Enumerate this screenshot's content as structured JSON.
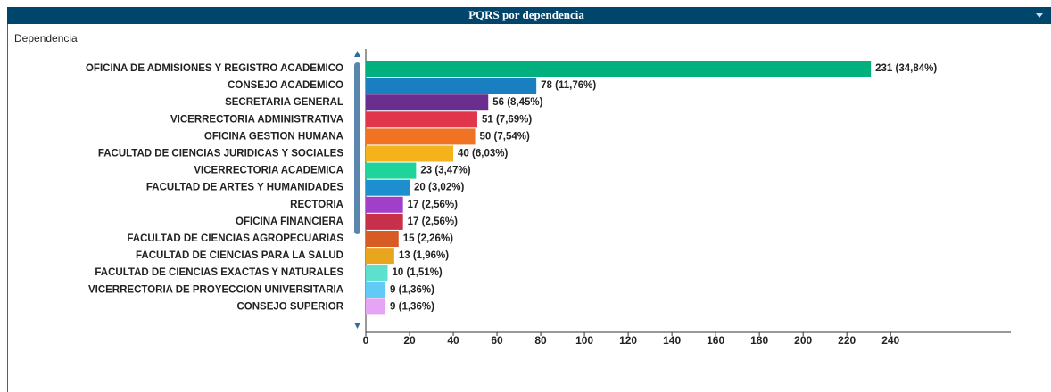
{
  "chart_data": {
    "type": "hbar",
    "title": "PQRS por dependencia",
    "y_label": "Dependencia",
    "categories": [
      "OFICINA DE ADMISIONES Y REGISTRO ACADEMICO",
      "CONSEJO ACADEMICO",
      "SECRETARIA GENERAL",
      "VICERRECTORIA ADMINISTRATIVA",
      "OFICINA GESTION HUMANA",
      "FACULTAD DE CIENCIAS JURIDICAS Y SOCIALES",
      "VICERRECTORIA ACADEMICA",
      "FACULTAD DE ARTES Y HUMANIDADES",
      "RECTORIA",
      "OFICINA FINANCIERA",
      "FACULTAD DE CIENCIAS AGROPECUARIAS",
      "FACULTAD DE CIENCIAS PARA LA SALUD",
      "FACULTAD DE CIENCIAS EXACTAS Y NATURALES",
      "VICERRECTORIA DE PROYECCION UNIVERSITARIA",
      "CONSEJO SUPERIOR"
    ],
    "values": [
      231,
      78,
      56,
      51,
      50,
      40,
      23,
      20,
      17,
      17,
      15,
      13,
      10,
      9,
      9
    ],
    "value_labels": [
      "231 (34,84%)",
      "78 (11,76%)",
      "56 (8,45%)",
      "51 (7,69%)",
      "50 (7,54%)",
      "40 (6,03%)",
      "23 (3,47%)",
      "20 (3,02%)",
      "17 (2,56%)",
      "17 (2,56%)",
      "15 (2,26%)",
      "13 (1,96%)",
      "10 (1,51%)",
      "9 (1,36%)",
      "9 (1,36%)"
    ],
    "colors": [
      "#01b07c",
      "#1a7fc0",
      "#6a2f8e",
      "#e0354a",
      "#f07223",
      "#f5b31b",
      "#1fd49a",
      "#1d8fcf",
      "#a040c8",
      "#c8304a",
      "#d85a25",
      "#e8a61e",
      "#5ee0cf",
      "#60ccf5",
      "#e6a4f5"
    ],
    "xlim": [
      0,
      295
    ],
    "xticks": [
      0,
      20,
      40,
      60,
      80,
      100,
      120,
      140,
      160,
      180,
      200,
      220,
      240
    ]
  }
}
